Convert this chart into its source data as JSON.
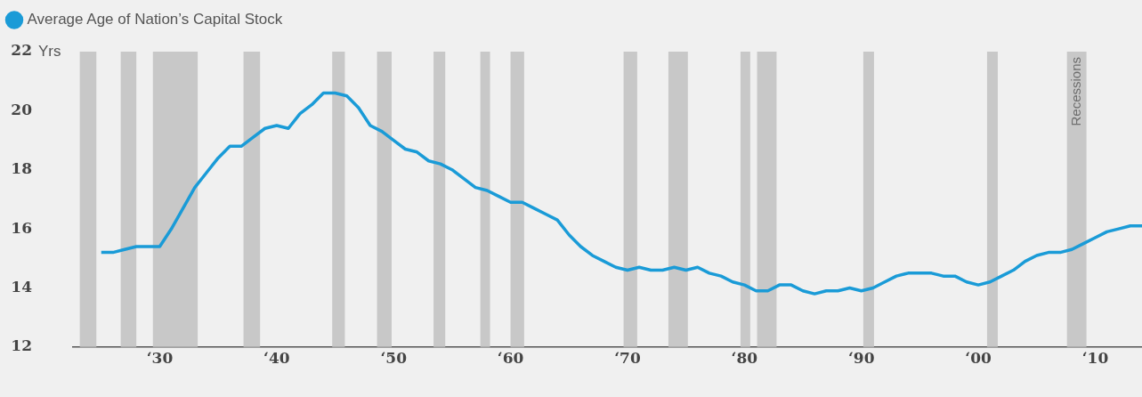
{
  "chart_data": {
    "type": "line",
    "legend": "top left",
    "ylabel": "Yrs",
    "x": [
      "1925",
      "1926",
      "1927",
      "1928",
      "1929",
      "1930",
      "1931",
      "1932",
      "1933",
      "1934",
      "1935",
      "1936",
      "1937",
      "1938",
      "1939",
      "1940",
      "1941",
      "1942",
      "1943",
      "1944",
      "1945",
      "1946",
      "1947",
      "1948",
      "1949",
      "1950",
      "1951",
      "1952",
      "1953",
      "1954",
      "1955",
      "1956",
      "1957",
      "1958",
      "1959",
      "1960",
      "1961",
      "1962",
      "1963",
      "1964",
      "1965",
      "1966",
      "1967",
      "1968",
      "1969",
      "1970",
      "1971",
      "1972",
      "1973",
      "1974",
      "1975",
      "1976",
      "1977",
      "1978",
      "1979",
      "1980",
      "1981",
      "1982",
      "1983",
      "1984",
      "1985",
      "1986",
      "1987",
      "1988",
      "1989",
      "1990",
      "1991",
      "1992",
      "1993",
      "1994",
      "1995",
      "1996",
      "1997",
      "1998",
      "1999",
      "2000",
      "2001",
      "2002",
      "2003",
      "2004",
      "2005",
      "2006",
      "2007",
      "2008",
      "2009",
      "2010",
      "2011",
      "2012",
      "2013",
      "2014"
    ],
    "series": [
      {
        "name": "Average Age of Nation’s Capital Stock",
        "color": "#1a9bd7",
        "values": [
          15.2,
          15.2,
          15.3,
          15.4,
          15.4,
          15.4,
          16.0,
          16.7,
          17.4,
          17.9,
          18.4,
          18.8,
          18.8,
          19.1,
          19.4,
          19.5,
          19.4,
          19.9,
          20.2,
          20.6,
          20.6,
          20.5,
          20.1,
          19.5,
          19.3,
          19.0,
          18.7,
          18.6,
          18.3,
          18.2,
          18.0,
          17.7,
          17.4,
          17.3,
          17.1,
          16.9,
          16.9,
          16.7,
          16.5,
          16.3,
          15.8,
          15.4,
          15.1,
          14.9,
          14.7,
          14.6,
          14.7,
          14.6,
          14.6,
          14.7,
          14.6,
          14.7,
          14.5,
          14.4,
          14.2,
          14.1,
          13.9,
          13.9,
          14.1,
          14.1,
          13.9,
          13.8,
          13.9,
          13.9,
          14.0,
          13.9,
          14.0,
          14.2,
          14.4,
          14.5,
          14.5,
          14.5,
          14.4,
          14.4,
          14.2,
          14.1,
          14.2,
          14.4,
          14.6,
          14.9,
          15.1,
          15.2,
          15.2,
          15.3,
          15.5,
          15.7,
          15.9,
          16.0,
          16.1,
          16.1
        ]
      }
    ],
    "xlim": [
      "1922-08",
      "2014"
    ],
    "xticks": [
      {
        "value": "1930",
        "label": "‘30"
      },
      {
        "value": "1940",
        "label": "‘40"
      },
      {
        "value": "1950",
        "label": "‘50"
      },
      {
        "value": "1960",
        "label": "‘60"
      },
      {
        "value": "1970",
        "label": "‘70"
      },
      {
        "value": "1980",
        "label": "‘80"
      },
      {
        "value": "1990",
        "label": "‘90"
      },
      {
        "value": "2000",
        "label": "‘00"
      },
      {
        "value": "2010",
        "label": "‘10"
      }
    ],
    "ylim": [
      12,
      22
    ],
    "yticks": [
      12,
      14,
      16,
      18,
      20,
      22
    ],
    "bands": [
      {
        "axis": "x",
        "from": "1923-03",
        "to": "1924-08",
        "color": "#c8c8c8"
      },
      {
        "axis": "x",
        "from": "1926-09",
        "to": "1928-01",
        "color": "#c8c8c8"
      },
      {
        "axis": "x",
        "from": "1929-06",
        "to": "1933-04",
        "color": "#c8c8c8"
      },
      {
        "axis": "x",
        "from": "1937-03",
        "to": "1938-08",
        "color": "#c8c8c8"
      },
      {
        "axis": "x",
        "from": "1944-10",
        "to": "1945-11",
        "color": "#c8c8c8"
      },
      {
        "axis": "x",
        "from": "1948-08",
        "to": "1949-11",
        "color": "#c8c8c8"
      },
      {
        "axis": "x",
        "from": "1953-06",
        "to": "1954-06",
        "color": "#c8c8c8"
      },
      {
        "axis": "x",
        "from": "1957-06",
        "to": "1958-04",
        "color": "#c8c8c8"
      },
      {
        "axis": "x",
        "from": "1960-01",
        "to": "1961-03",
        "color": "#c8c8c8"
      },
      {
        "axis": "x",
        "from": "1969-09",
        "to": "1970-11",
        "color": "#c8c8c8"
      },
      {
        "axis": "x",
        "from": "1973-07",
        "to": "1975-03",
        "color": "#c8c8c8"
      },
      {
        "axis": "x",
        "from": "1979-09",
        "to": "1980-07",
        "color": "#c8c8c8"
      },
      {
        "axis": "x",
        "from": "1981-02",
        "to": "1982-10",
        "color": "#c8c8c8"
      },
      {
        "axis": "x",
        "from": "1990-03",
        "to": "1991-02",
        "color": "#c8c8c8"
      },
      {
        "axis": "x",
        "from": "2000-10",
        "to": "2001-09",
        "color": "#c8c8c8"
      },
      {
        "axis": "x",
        "from": "2007-08",
        "to": "2009-04",
        "color": "#c8c8c8",
        "label": "Recessions"
      }
    ]
  }
}
